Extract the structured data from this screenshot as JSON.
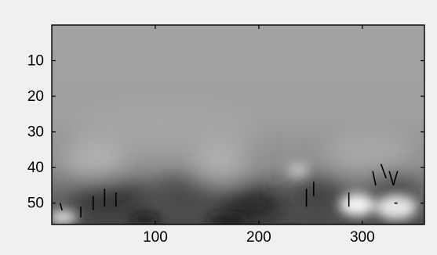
{
  "chart_data": {
    "type": "heatmap",
    "title": "",
    "xlabel": "",
    "ylabel": "",
    "colormap": "gray",
    "grid": false,
    "xlim": [
      0,
      360
    ],
    "ylim": [
      0,
      56
    ],
    "y_direction": "reversed",
    "x_ticks": [
      100,
      200,
      300
    ],
    "y_ticks": [
      10,
      20,
      30,
      40,
      50
    ],
    "x_tick_labels": [
      "100",
      "200",
      "300"
    ],
    "y_tick_labels": [
      "10",
      "20",
      "30",
      "40",
      "50"
    ],
    "intensity_description": "uniform mid-gray (~0.65) from row 0 to ~30, darkening toward rows 45-56 with darkest bands near x 60-110, 150-220 and 260-290; bright white patches near x 290-350 at rows 45-55 and x 0-20 at row 53",
    "annotation_strokes": [
      {
        "x1": 8,
        "y1": 50,
        "x2": 10,
        "y2": 52
      },
      {
        "x1": 28,
        "y1": 51,
        "x2": 28,
        "y2": 54
      },
      {
        "x1": 40,
        "y1": 48,
        "x2": 40,
        "y2": 52
      },
      {
        "x1": 51,
        "y1": 46,
        "x2": 51,
        "y2": 51
      },
      {
        "x1": 62,
        "y1": 47,
        "x2": 62,
        "y2": 51
      },
      {
        "x1": 246,
        "y1": 46,
        "x2": 246,
        "y2": 51
      },
      {
        "x1": 253,
        "y1": 44,
        "x2": 253,
        "y2": 48
      },
      {
        "x1": 287,
        "y1": 47,
        "x2": 287,
        "y2": 51
      },
      {
        "x1": 310,
        "y1": 41,
        "x2": 313,
        "y2": 45
      },
      {
        "x1": 318,
        "y1": 39,
        "x2": 323,
        "y2": 43
      },
      {
        "x1": 326,
        "y1": 41,
        "x2": 330,
        "y2": 45
      },
      {
        "x1": 330,
        "y1": 45,
        "x2": 334,
        "y2": 41
      },
      {
        "x1": 331,
        "y1": 50,
        "x2": 334,
        "y2": 50
      }
    ]
  }
}
